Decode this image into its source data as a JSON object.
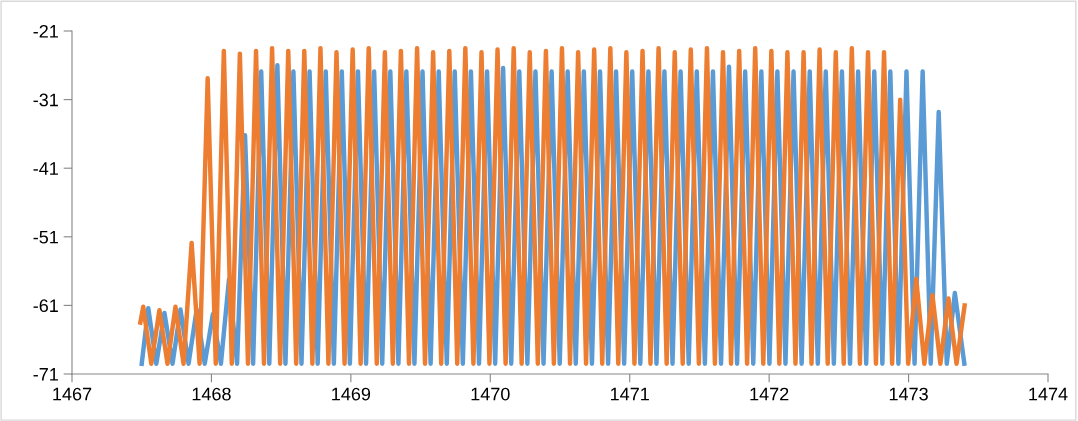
{
  "chart_data": {
    "type": "line",
    "xlim": [
      1467,
      1474
    ],
    "xticks": [
      1467,
      1468,
      1469,
      1470,
      1471,
      1472,
      1473,
      1474
    ],
    "ylim": [
      -71,
      -21
    ],
    "yticks": [
      -71,
      -61,
      -51,
      -41,
      -31,
      -21
    ],
    "marker": "none",
    "line_style": "solid",
    "series": [
      {
        "color": "#5b9bd5",
        "x": [
          1467.5,
          1467.547,
          1467.605,
          1467.663,
          1467.721,
          1467.778,
          1467.836,
          1467.894,
          1467.952,
          1468.01,
          1468.068,
          1468.126,
          1468.184,
          1468.241,
          1468.299,
          1468.357,
          1468.415,
          1468.473,
          1468.531,
          1468.588,
          1468.646,
          1468.704,
          1468.762,
          1468.82,
          1468.878,
          1468.935,
          1468.993,
          1469.051,
          1469.109,
          1469.167,
          1469.225,
          1469.283,
          1469.341,
          1469.398,
          1469.456,
          1469.514,
          1469.572,
          1469.63,
          1469.688,
          1469.745,
          1469.803,
          1469.861,
          1469.919,
          1469.977,
          1470.035,
          1470.092,
          1470.15,
          1470.208,
          1470.266,
          1470.324,
          1470.382,
          1470.44,
          1470.498,
          1470.555,
          1470.613,
          1470.671,
          1470.729,
          1470.787,
          1470.845,
          1470.902,
          1470.96,
          1471.018,
          1471.076,
          1471.134,
          1471.192,
          1471.249,
          1471.307,
          1471.365,
          1471.423,
          1471.481,
          1471.539,
          1471.597,
          1471.655,
          1471.712,
          1471.77,
          1471.828,
          1471.886,
          1471.944,
          1472.002,
          1472.059,
          1472.117,
          1472.175,
          1472.233,
          1472.291,
          1472.349,
          1472.406,
          1472.464,
          1472.522,
          1472.58,
          1472.638,
          1472.696,
          1472.754,
          1472.812,
          1472.869,
          1472.927,
          1472.985,
          1473.043,
          1473.101,
          1473.159,
          1473.216,
          1473.274,
          1473.332,
          1473.4
        ],
        "values": [
          -69.5,
          -61.4,
          -69.5,
          -62.1,
          -69.5,
          -61.6,
          -69.5,
          -61.6,
          -69.5,
          -62.3,
          -69.5,
          -57.2,
          -69.5,
          -36.2,
          -69.5,
          -26.9,
          -69.5,
          -26.0,
          -69.5,
          -26.9,
          -69.5,
          -26.9,
          -69.5,
          -26.9,
          -69.5,
          -26.9,
          -69.5,
          -26.9,
          -69.5,
          -26.9,
          -69.5,
          -26.9,
          -69.5,
          -26.9,
          -69.5,
          -26.9,
          -69.5,
          -26.9,
          -69.5,
          -26.9,
          -69.5,
          -26.9,
          -69.5,
          -26.9,
          -69.5,
          -26.4,
          -69.5,
          -26.9,
          -69.5,
          -26.9,
          -69.5,
          -26.9,
          -69.5,
          -26.9,
          -69.5,
          -26.9,
          -69.5,
          -26.9,
          -69.5,
          -26.9,
          -69.5,
          -26.9,
          -69.5,
          -26.9,
          -69.5,
          -26.9,
          -69.5,
          -26.9,
          -69.5,
          -26.9,
          -69.5,
          -26.9,
          -69.5,
          -26.2,
          -69.5,
          -26.9,
          -69.5,
          -26.9,
          -69.5,
          -26.9,
          -69.5,
          -26.9,
          -69.5,
          -26.9,
          -69.5,
          -26.9,
          -69.5,
          -26.9,
          -69.5,
          -26.9,
          -69.5,
          -26.9,
          -69.5,
          -26.9,
          -69.5,
          -26.9,
          -69.5,
          -26.9,
          -69.5,
          -32.8,
          -69.5,
          -59.2,
          -69.5
        ]
      },
      {
        "color": "#ed7d31",
        "x": [
          1467.49,
          1467.511,
          1467.569,
          1467.627,
          1467.685,
          1467.742,
          1467.8,
          1467.858,
          1467.915,
          1467.973,
          1468.031,
          1468.089,
          1468.146,
          1468.204,
          1468.262,
          1468.32,
          1468.377,
          1468.435,
          1468.493,
          1468.551,
          1468.608,
          1468.666,
          1468.724,
          1468.782,
          1468.839,
          1468.897,
          1468.955,
          1469.013,
          1469.07,
          1469.128,
          1469.186,
          1469.244,
          1469.301,
          1469.359,
          1469.417,
          1469.475,
          1469.532,
          1469.59,
          1469.648,
          1469.706,
          1469.763,
          1469.821,
          1469.879,
          1469.937,
          1469.994,
          1470.052,
          1470.11,
          1470.168,
          1470.225,
          1470.283,
          1470.341,
          1470.399,
          1470.456,
          1470.514,
          1470.572,
          1470.63,
          1470.687,
          1470.745,
          1470.803,
          1470.861,
          1470.918,
          1470.976,
          1471.034,
          1471.092,
          1471.149,
          1471.207,
          1471.265,
          1471.323,
          1471.38,
          1471.438,
          1471.496,
          1471.554,
          1471.611,
          1471.669,
          1471.727,
          1471.785,
          1471.842,
          1471.9,
          1471.958,
          1472.016,
          1472.073,
          1472.131,
          1472.189,
          1472.247,
          1472.304,
          1472.362,
          1472.42,
          1472.478,
          1472.535,
          1472.593,
          1472.651,
          1472.709,
          1472.766,
          1472.824,
          1472.882,
          1472.94,
          1472.997,
          1473.055,
          1473.113,
          1473.171,
          1473.228,
          1473.286,
          1473.344,
          1473.402
        ],
        "values": [
          -63.5,
          -61.2,
          -69.5,
          -61.7,
          -69.5,
          -61.2,
          -69.5,
          -51.9,
          -69.5,
          -27.9,
          -69.5,
          -23.9,
          -69.5,
          -24.3,
          -69.5,
          -23.9,
          -69.5,
          -23.5,
          -69.5,
          -23.9,
          -69.5,
          -23.9,
          -69.5,
          -23.5,
          -69.5,
          -24.1,
          -69.5,
          -23.7,
          -69.5,
          -23.5,
          -69.5,
          -24.1,
          -69.5,
          -23.9,
          -69.5,
          -23.5,
          -69.5,
          -24.1,
          -69.5,
          -23.9,
          -69.5,
          -23.5,
          -69.5,
          -24.1,
          -69.5,
          -23.7,
          -69.5,
          -23.5,
          -69.5,
          -24.1,
          -69.5,
          -23.9,
          -69.5,
          -23.5,
          -69.5,
          -24.1,
          -69.5,
          -23.7,
          -69.5,
          -23.5,
          -69.5,
          -24.1,
          -69.5,
          -23.9,
          -69.5,
          -23.5,
          -69.5,
          -24.1,
          -69.5,
          -23.7,
          -69.5,
          -23.5,
          -69.5,
          -24.1,
          -69.5,
          -23.9,
          -69.5,
          -23.5,
          -69.5,
          -23.9,
          -69.5,
          -24.1,
          -69.5,
          -24.1,
          -69.5,
          -23.7,
          -69.5,
          -24.1,
          -69.5,
          -23.5,
          -69.5,
          -24.1,
          -69.5,
          -24.1,
          -69.5,
          -31.0,
          -69.5,
          -57.1,
          -69.5,
          -59.5,
          -69.5,
          -60.0,
          -69.5,
          -61.0
        ]
      }
    ]
  }
}
